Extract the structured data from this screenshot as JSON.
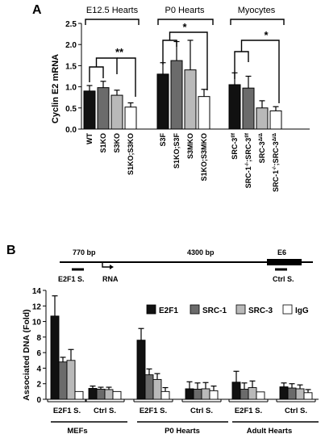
{
  "panel_a": {
    "label": "A",
    "ylabel": "Cyclin E2 mRNA",
    "ticks": [
      "0.0",
      "0.5",
      "1.0",
      "1.5",
      "2.0",
      "2.5"
    ],
    "groups": [
      {
        "name": "E12.5 Hearts",
        "sig": "**"
      },
      {
        "name": "P0 Hearts",
        "sig": "*"
      },
      {
        "name": "Myocytes",
        "sig": "*"
      }
    ]
  },
  "panel_b": {
    "label": "B",
    "ylabel": "Associated DNA (Fold)",
    "ticks": [
      "0",
      "2",
      "4",
      "6",
      "8",
      "10",
      "12",
      "14"
    ],
    "map": {
      "dist1": "770 bp",
      "dist2": "4300 bp",
      "exon": "E6",
      "site1": "E2F1 S.",
      "rna": "RNA",
      "site2": "Ctrl S."
    },
    "legend": [
      "E2F1",
      "SRC-1",
      "SRC-3",
      "IgG"
    ],
    "sites": [
      "E2F1 S.",
      "Ctrl S.",
      "E2F1 S.",
      "Ctrl S.",
      "E2F1 S.",
      "Ctrl S."
    ],
    "tissues": [
      "MEFs",
      "P0 Hearts",
      "Adult Hearts"
    ]
  },
  "colors": {
    "black": "#111111",
    "dark": "#6b6b6b",
    "light": "#b9b9b9",
    "white": "#ffffff"
  },
  "chart_data": [
    {
      "type": "bar",
      "ylabel": "Cyclin E2 mRNA",
      "ylim": [
        0,
        2.5
      ],
      "categories": [
        "WT",
        "S1KO",
        "S3KO",
        "S1KO;S3KO",
        "S3F",
        "S1KO;S3F",
        "S3MKO",
        "S1KO;S3MKO",
        "SRC-3f/f",
        "SRC-1-/-;SRC-3f/f",
        "SRC-3Δ/Δ",
        "SRC-1-/-;SRC-3Δ/Δ"
      ],
      "values": [
        0.9,
        0.98,
        0.8,
        0.52,
        1.3,
        1.62,
        1.4,
        0.77,
        1.05,
        0.97,
        0.5,
        0.43
      ],
      "errors": [
        0.13,
        0.15,
        0.12,
        0.1,
        0.27,
        0.45,
        0.7,
        0.17,
        0.28,
        0.28,
        0.17,
        0.1
      ],
      "fills": [
        "black",
        "dark",
        "light",
        "white",
        "black",
        "dark",
        "light",
        "white",
        "black",
        "dark",
        "light",
        "white"
      ],
      "groups": [
        "E12.5 Hearts",
        "P0 Hearts",
        "Myocytes"
      ]
    },
    {
      "type": "bar",
      "ylabel": "Associated DNA (Fold)",
      "ylim": [
        0,
        14
      ],
      "categories": [
        "E2F1 S.",
        "Ctrl S.",
        "E2F1 S.",
        "Ctrl S.",
        "E2F1 S.",
        "Ctrl S."
      ],
      "series": [
        {
          "name": "E2F1",
          "values": [
            10.7,
            1.4,
            7.6,
            1.35,
            2.2,
            1.6
          ],
          "errors": [
            2.6,
            0.3,
            1.5,
            0.9,
            1.4,
            0.5
          ]
        },
        {
          "name": "SRC-1",
          "values": [
            4.8,
            1.3,
            3.15,
            1.3,
            1.3,
            1.45
          ],
          "errors": [
            0.6,
            0.25,
            0.75,
            0.8,
            0.8,
            0.55
          ]
        },
        {
          "name": "SRC-3",
          "values": [
            5.0,
            1.25,
            2.55,
            1.35,
            1.5,
            1.35
          ],
          "errors": [
            1.4,
            0.3,
            0.75,
            0.8,
            0.85,
            0.5
          ]
        },
        {
          "name": "IgG",
          "values": [
            1.0,
            1.0,
            1.0,
            1.1,
            0.95,
            0.85
          ],
          "errors": [
            0,
            0,
            0.5,
            0.6,
            0,
            0.4
          ]
        }
      ],
      "tissues": [
        "MEFs",
        "P0 Hearts",
        "Adult Hearts"
      ]
    }
  ]
}
